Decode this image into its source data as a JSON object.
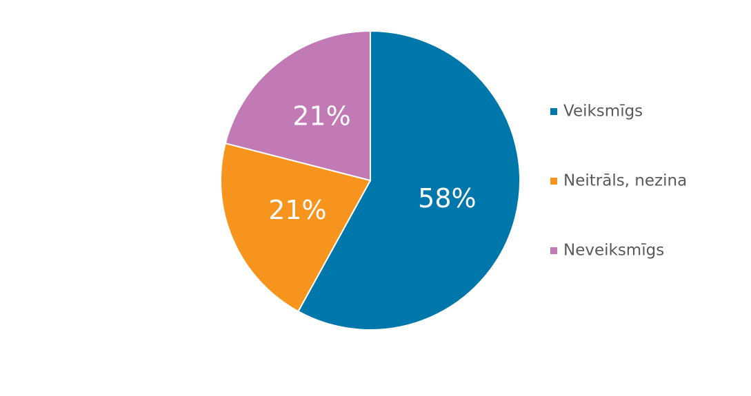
{
  "chart_data": {
    "type": "pie",
    "categories": [
      "Veiksmīgs",
      "Neitrāls, nezina",
      "Neveiksmīgs"
    ],
    "values": [
      58,
      21,
      21
    ],
    "value_labels": [
      "58%",
      "21%",
      "21%"
    ],
    "colors": [
      "#0077aa",
      "#f7941d",
      "#c17ab5"
    ],
    "legend": "right"
  }
}
